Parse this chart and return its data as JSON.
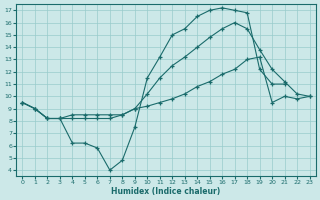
{
  "xlabel": "Humidex (Indice chaleur)",
  "xlim": [
    -0.5,
    23.5
  ],
  "ylim": [
    3.5,
    17.5
  ],
  "xticks": [
    0,
    1,
    2,
    3,
    4,
    5,
    6,
    7,
    8,
    9,
    10,
    11,
    12,
    13,
    14,
    15,
    16,
    17,
    18,
    19,
    20,
    21,
    22,
    23
  ],
  "yticks": [
    4,
    5,
    6,
    7,
    8,
    9,
    10,
    11,
    12,
    13,
    14,
    15,
    16,
    17
  ],
  "bg_color": "#cce8e8",
  "line_color": "#1a6b6b",
  "grid_color": "#99cccc",
  "series": [
    {
      "x": [
        0,
        1,
        2,
        3,
        4,
        5,
        6,
        7,
        8,
        9,
        10,
        11,
        12,
        13,
        14,
        15,
        16,
        17,
        18,
        19,
        20,
        21
      ],
      "y": [
        9.5,
        9.0,
        8.2,
        8.2,
        6.2,
        6.2,
        5.8,
        4.0,
        4.8,
        7.5,
        11.5,
        13.2,
        15.0,
        15.5,
        16.5,
        17.0,
        17.2,
        17.0,
        16.8,
        12.2,
        11.0,
        11.0
      ]
    },
    {
      "x": [
        0,
        1,
        2,
        3,
        4,
        5,
        6,
        7,
        8,
        9,
        10,
        11,
        12,
        13,
        14,
        15,
        16,
        17,
        18,
        19,
        20,
        21,
        22,
        23
      ],
      "y": [
        9.5,
        9.0,
        8.2,
        8.2,
        8.5,
        8.5,
        8.5,
        8.5,
        8.5,
        9.0,
        10.2,
        11.5,
        12.5,
        13.2,
        14.0,
        14.8,
        15.5,
        16.0,
        15.5,
        13.8,
        12.2,
        11.2,
        10.2,
        10.0
      ]
    },
    {
      "x": [
        0,
        1,
        2,
        3,
        4,
        5,
        6,
        7,
        8,
        9,
        10,
        11,
        12,
        13,
        14,
        15,
        16,
        17,
        18,
        19,
        20,
        21,
        22,
        23
      ],
      "y": [
        9.5,
        9.0,
        8.2,
        8.2,
        8.2,
        8.2,
        8.2,
        8.2,
        8.5,
        9.0,
        9.2,
        9.5,
        9.8,
        10.2,
        10.8,
        11.2,
        11.8,
        12.2,
        13.0,
        13.2,
        9.5,
        10.0,
        9.8,
        10.0
      ]
    }
  ]
}
